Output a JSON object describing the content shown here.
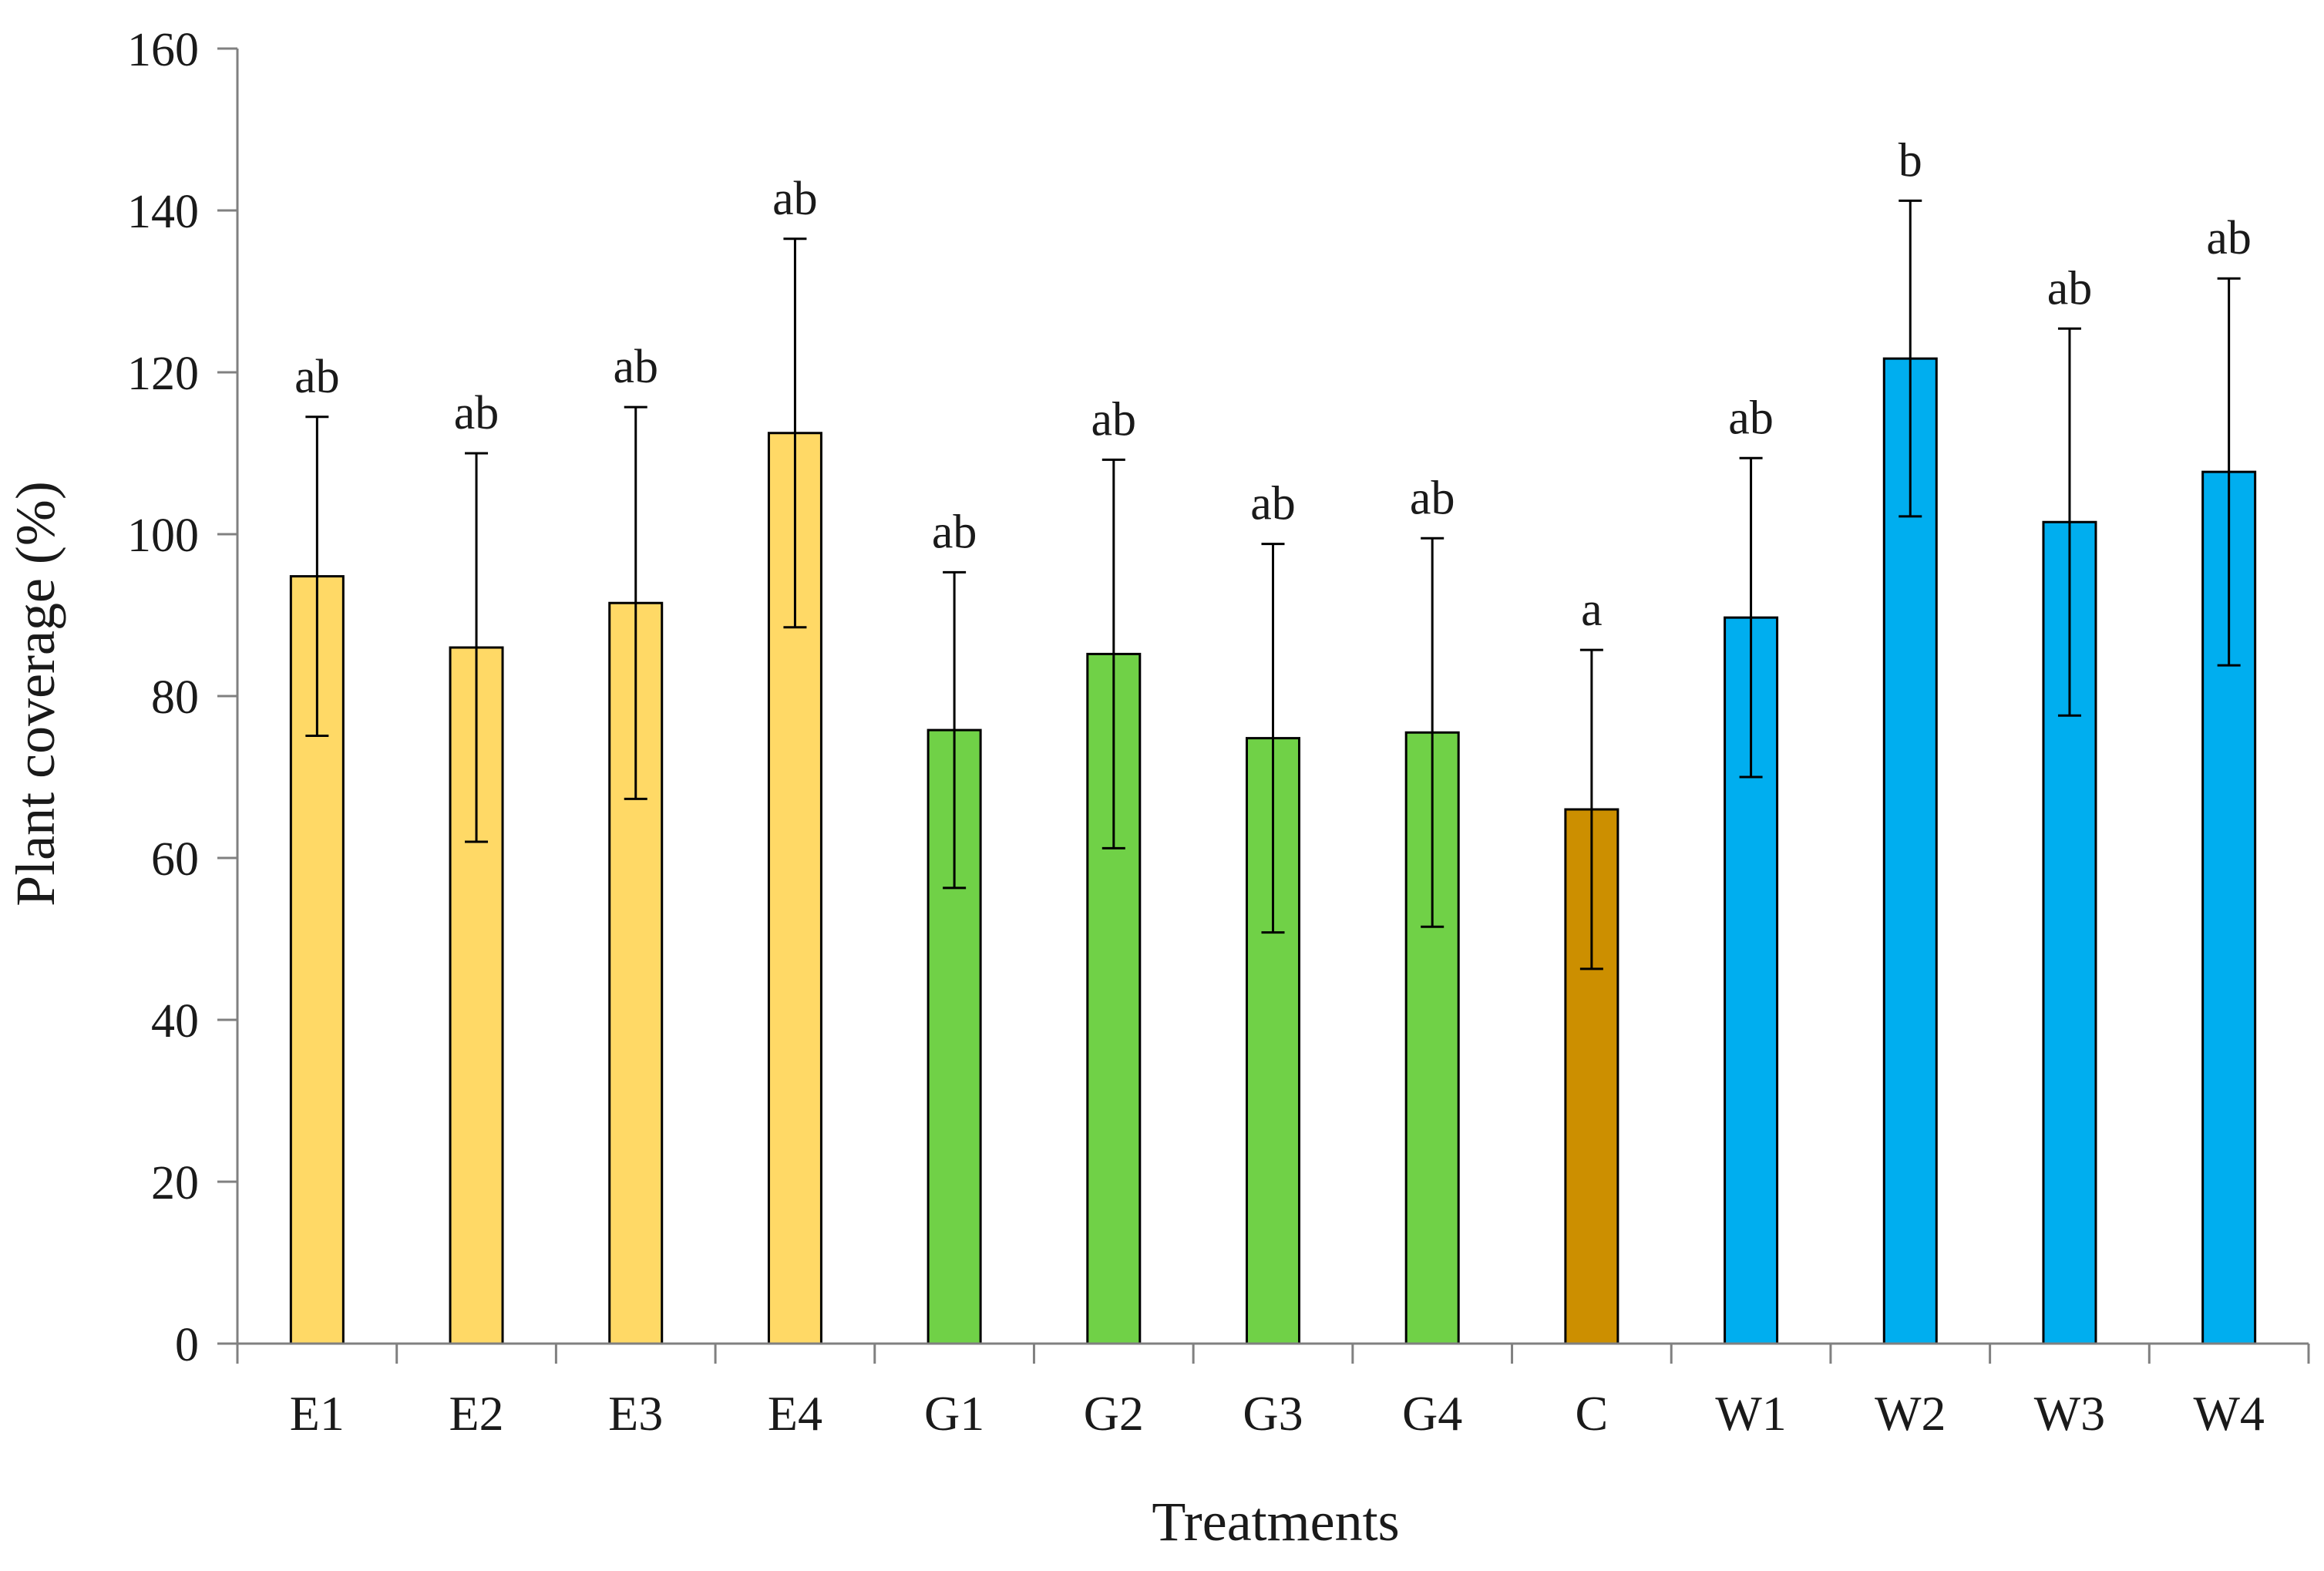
{
  "chart_data": {
    "type": "bar",
    "title": "",
    "xlabel": "Treatments",
    "ylabel": "Plant coverage (%)",
    "ylim": [
      0,
      160
    ],
    "yticks": [
      0,
      20,
      40,
      60,
      80,
      100,
      120,
      140,
      160
    ],
    "grid": false,
    "legend": "none",
    "categories": [
      "E1",
      "E2",
      "E3",
      "E4",
      "G1",
      "G2",
      "G3",
      "G4",
      "C",
      "W1",
      "W2",
      "W3",
      "W4"
    ],
    "values": [
      94.8,
      86.0,
      91.5,
      112.5,
      75.8,
      85.2,
      74.8,
      75.5,
      66.0,
      89.7,
      121.7,
      101.5,
      107.7
    ],
    "errors": [
      19.7,
      24.0,
      24.2,
      24.0,
      19.5,
      24.0,
      24.0,
      24.0,
      19.7,
      19.7,
      19.5,
      23.9,
      23.9
    ],
    "significance": [
      "ab",
      "ab",
      "ab",
      "ab",
      "ab",
      "ab",
      "ab",
      "ab",
      "a",
      "ab",
      "b",
      "ab",
      "ab"
    ],
    "groups": [
      "E",
      "E",
      "E",
      "E",
      "G",
      "G",
      "G",
      "G",
      "C",
      "W",
      "W",
      "W",
      "W"
    ],
    "colors": {
      "E": "#FFD966",
      "G": "#70D147",
      "C": "#CC8F00",
      "W": "#00AEEF"
    }
  }
}
